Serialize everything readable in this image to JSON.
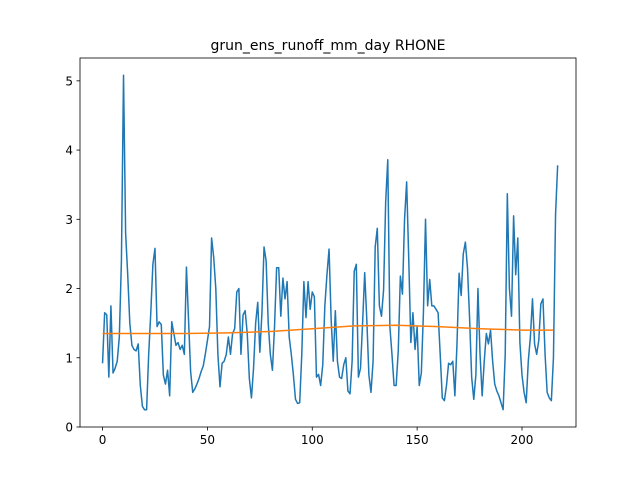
{
  "chart_data": {
    "type": "line",
    "title": "grun_ens_runoff_mm_day RHONE",
    "xlabel": "",
    "ylabel": "",
    "xlim": [
      -10.75,
      225.75
    ],
    "ylim": [
      0,
      5.33
    ],
    "x_ticks": [
      0,
      50,
      100,
      150,
      200
    ],
    "y_ticks": [
      0,
      1,
      2,
      3,
      4,
      5
    ],
    "grid": false,
    "legend": "none",
    "series": [
      {
        "color": "#1f77b4",
        "x_start": 0,
        "values": [
          0.92,
          1.65,
          1.62,
          0.72,
          1.75,
          0.78,
          0.85,
          0.95,
          1.3,
          2.4,
          5.08,
          2.8,
          2.2,
          1.5,
          1.18,
          1.12,
          1.1,
          1.2,
          0.6,
          0.3,
          0.25,
          0.25,
          1.05,
          1.65,
          2.35,
          2.58,
          1.45,
          1.52,
          1.48,
          0.75,
          0.62,
          0.82,
          0.45,
          1.52,
          1.35,
          1.18,
          1.22,
          1.12,
          1.18,
          1.05,
          2.31,
          1.55,
          0.8,
          0.5,
          0.55,
          0.62,
          0.7,
          0.8,
          0.88,
          1.05,
          1.25,
          1.45,
          2.73,
          2.45,
          2.0,
          1.05,
          0.58,
          0.92,
          0.95,
          1.05,
          1.3,
          1.05,
          1.35,
          1.42,
          1.95,
          2.0,
          1.05,
          1.62,
          1.68,
          1.35,
          0.7,
          0.42,
          0.85,
          1.5,
          1.8,
          1.08,
          1.65,
          2.6,
          2.4,
          1.5,
          1.05,
          0.82,
          1.45,
          2.3,
          2.3,
          1.6,
          2.15,
          1.85,
          2.1,
          1.3,
          1.05,
          0.75,
          0.4,
          0.34,
          0.35,
          1.05,
          2.1,
          1.58,
          2.1,
          1.7,
          1.95,
          1.88,
          0.72,
          0.76,
          0.6,
          0.9,
          1.75,
          2.2,
          2.57,
          1.55,
          0.95,
          1.68,
          0.95,
          0.72,
          0.7,
          0.9,
          1.0,
          0.52,
          0.48,
          0.95,
          2.25,
          2.35,
          0.72,
          0.85,
          1.5,
          2.23,
          1.55,
          0.75,
          0.5,
          0.95,
          2.6,
          2.87,
          1.75,
          1.6,
          1.98,
          3.25,
          3.86,
          1.45,
          1.05,
          0.6,
          0.6,
          1.1,
          2.18,
          1.92,
          3.0,
          3.54,
          2.43,
          1.22,
          1.65,
          1.12,
          1.45,
          0.6,
          0.78,
          1.65,
          3.0,
          1.75,
          2.13,
          1.75,
          1.75,
          1.7,
          1.65,
          1.05,
          0.42,
          0.38,
          0.6,
          0.92,
          0.9,
          0.95,
          0.45,
          1.2,
          2.22,
          1.9,
          2.5,
          2.67,
          2.3,
          1.58,
          0.72,
          0.4,
          0.75,
          2.0,
          1.05,
          0.45,
          0.95,
          1.35,
          1.2,
          1.4,
          0.95,
          0.62,
          0.52,
          0.45,
          0.35,
          0.25,
          1.05,
          3.37,
          2.0,
          1.6,
          3.05,
          2.2,
          2.73,
          1.22,
          0.75,
          0.5,
          0.35,
          0.95,
          1.3,
          1.85,
          1.2,
          1.05,
          1.25,
          1.78,
          1.85,
          1.05,
          0.5,
          0.42,
          0.38,
          1.0,
          3.07,
          3.78
        ]
      },
      {
        "color": "#ff7f0e",
        "x": [
          0,
          20,
          40,
          60,
          80,
          100,
          120,
          140,
          160,
          180,
          200,
          215
        ],
        "values": [
          1.35,
          1.35,
          1.35,
          1.36,
          1.38,
          1.42,
          1.46,
          1.47,
          1.45,
          1.42,
          1.4,
          1.4
        ]
      }
    ]
  }
}
